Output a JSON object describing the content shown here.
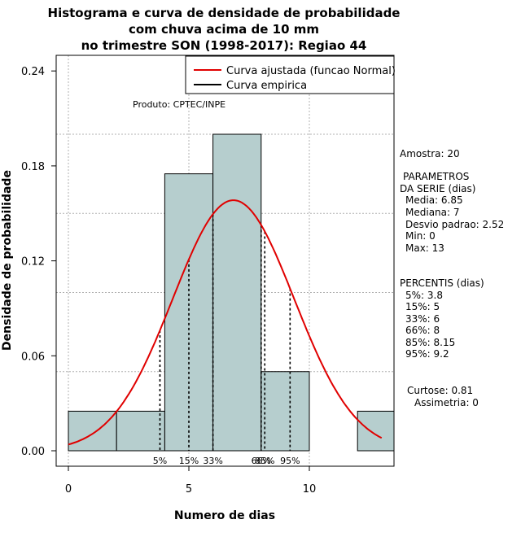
{
  "chart_data": {
    "type": "bar",
    "title": [
      "Histograma e curva de densidade de probabilidade",
      "com chuva acima de 10 mm",
      "no trimestre SON (1998-2017): Regiao 44"
    ],
    "xlabel": "Numero de dias",
    "ylabel": "Densidade de probabilidade",
    "xlim": [
      0,
      13.5
    ],
    "ylim": [
      0,
      0.24
    ],
    "x_ticks": [
      0,
      5,
      10
    ],
    "x_tick_labels": [
      "0",
      "5",
      "10"
    ],
    "y_ticks": [
      0.0,
      0.06,
      0.12,
      0.18,
      0.24
    ],
    "y_tick_labels": [
      "0.00",
      "0.06",
      "0.12",
      "0.18",
      "0.24"
    ],
    "grid": true,
    "bins": [
      {
        "from": 0,
        "to": 2,
        "density": 0.025
      },
      {
        "from": 2,
        "to": 4,
        "density": 0.025
      },
      {
        "from": 4,
        "to": 6,
        "density": 0.175
      },
      {
        "from": 6,
        "to": 8,
        "density": 0.2
      },
      {
        "from": 8,
        "to": 10,
        "density": 0.05
      },
      {
        "from": 10,
        "to": 12,
        "density": 0.0
      },
      {
        "from": 12,
        "to": 14,
        "density": 0.025
      }
    ],
    "normal_fit": {
      "mean": 6.85,
      "sd": 2.52,
      "x_from": 0,
      "x_to": 13
    },
    "percentiles": [
      {
        "label": "5%",
        "x": 3.8
      },
      {
        "label": "15%",
        "x": 5
      },
      {
        "label": "33%",
        "x": 6
      },
      {
        "label": "66%",
        "x": 8
      },
      {
        "label": "85%",
        "x": 8.15
      },
      {
        "label": "95%",
        "x": 9.2
      }
    ],
    "legend": {
      "position": "top-right",
      "entries": [
        {
          "label": "Curva ajustada (funcao Normal)",
          "color": "#e00000"
        },
        {
          "label": "Curva empirica",
          "color": "#000000"
        }
      ]
    },
    "colors": {
      "bar_fill": "#b6cece",
      "bar_stroke": "#000000",
      "curve": "#e00000",
      "grid": "#b0b0b0"
    }
  },
  "credit": "Produto: CPTEC/INPE",
  "stats": {
    "amostra": "Amostra: 20",
    "params_title_1": "PARAMETROS",
    "params_title_2": "DA SERIE (dias)",
    "media": "Media: 6.85",
    "mediana": "Mediana: 7",
    "desvio": "Desvio padrao: 2.52",
    "min": "Min: 0",
    "max": "Max: 13",
    "percentis_title": "PERCENTIS (dias)",
    "p5": "5%: 3.8",
    "p15": "15%: 5",
    "p33": "33%: 6",
    "p66": "66%: 8",
    "p85": "85%: 8.15",
    "p95": "95%: 9.2",
    "curtose": "Curtose: 0.81",
    "assimetria": "Assimetria: 0"
  }
}
